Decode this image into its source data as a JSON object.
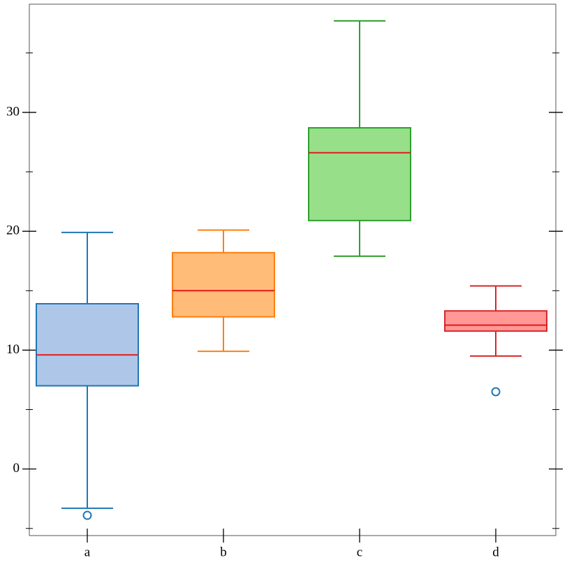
{
  "chart_data": {
    "type": "box",
    "categories": [
      "a",
      "b",
      "c",
      "d"
    ],
    "boxes": [
      {
        "whislo": -3.3,
        "q1": 7.0,
        "med": 9.6,
        "q3": 13.9,
        "whishi": 19.9,
        "fliers": [
          -3.9
        ],
        "color": "#1f77b4",
        "fill": "#aec7e8"
      },
      {
        "whislo": 9.9,
        "q1": 12.8,
        "med": 15.0,
        "q3": 18.2,
        "whishi": 20.1,
        "fliers": [],
        "color": "#ff7f0e",
        "fill": "#ffbb78"
      },
      {
        "whislo": 17.9,
        "q1": 20.9,
        "med": 26.6,
        "q3": 28.7,
        "whishi": 37.7,
        "fliers": [],
        "color": "#2ca02c",
        "fill": "#98df8a"
      },
      {
        "whislo": 9.5,
        "q1": 11.6,
        "med": 12.1,
        "q3": 13.3,
        "whishi": 15.4,
        "fliers": [
          6.5
        ],
        "color": "#d62728",
        "fill": "#ff9896"
      }
    ],
    "median_color": "#e41a1c",
    "flier_color": "#1f77b4",
    "ylim": [
      -5.6,
      39.1
    ],
    "yticks": [
      0,
      10,
      20,
      30
    ],
    "minor_yticks": [
      -5,
      5,
      15,
      25,
      35
    ]
  }
}
